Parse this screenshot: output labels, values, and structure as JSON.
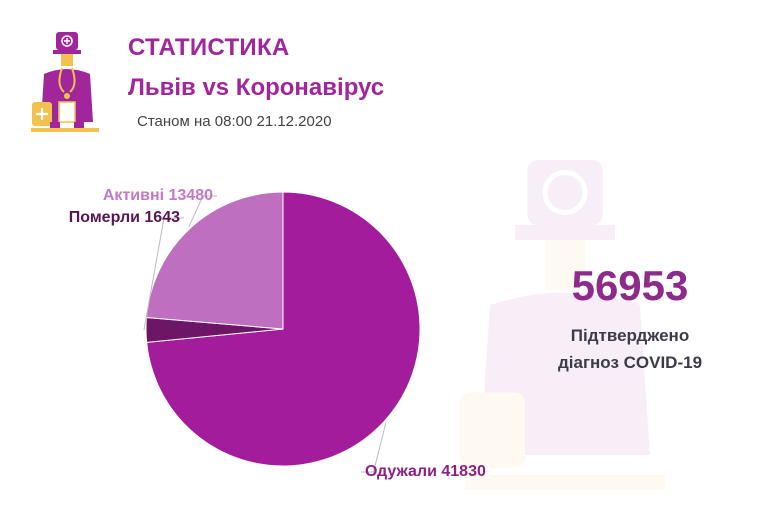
{
  "header": {
    "title": "СТАТИСТИКА",
    "subtitle": "Львів vs Коронавірус",
    "date": "Станом на 08:00 21.12.2020"
  },
  "summary": {
    "number": "56953",
    "caption_line1": "Підтверджено",
    "caption_line2": "діагноз COVID-19"
  },
  "icons": {
    "logo": "doctor-icon",
    "watermark": "doctor-icon"
  },
  "colors": {
    "accent": "#a2269b",
    "recovered": "#a21c9c",
    "died": "#6d1566",
    "active": "#bf6fbf",
    "number": "#8d2a8a"
  },
  "chart_data": {
    "type": "pie",
    "slices": [
      {
        "name": "Одужали",
        "value": 41830,
        "label": "Одужали 41830",
        "color": "#a21c9c"
      },
      {
        "name": "Померли",
        "value": 1643,
        "label": "Померли 1643",
        "color": "#6d1566"
      },
      {
        "name": "Активні",
        "value": 13480,
        "label": "Активні 13480",
        "color": "#bf6fbf"
      }
    ]
  }
}
